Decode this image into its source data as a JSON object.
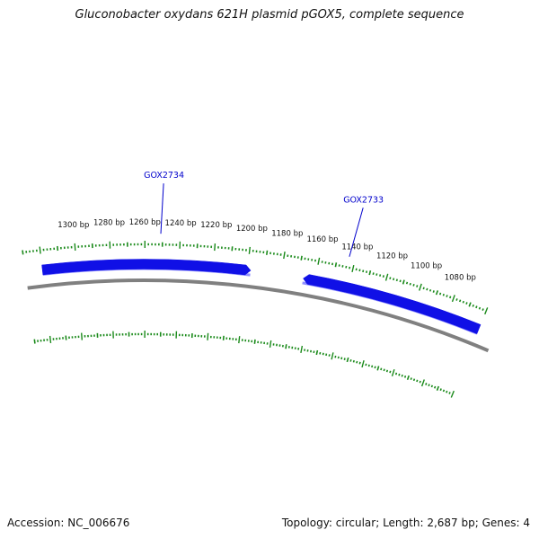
{
  "title": "Gluconobacter oxydans 621H plasmid pGOX5, complete sequence",
  "accession_label": "Accession: NC_006676",
  "summary_label": "Topology: circular; Length: 2,687 bp; Genes: 4",
  "colors": {
    "gene": "#1010e6",
    "gene_shadow": "#9090ff",
    "backbone": "#808080",
    "tick": "#1a8a1a",
    "gene_label": "#0000cc",
    "text": "#111111"
  },
  "map": {
    "topology": "circular",
    "sequence_length_bp": 2687,
    "visible_range_bp": [
      1070,
      1310
    ],
    "ruler_labels": [
      "1080 bp",
      "1100 bp",
      "1120 bp",
      "1140 bp",
      "1160 bp",
      "1180 bp",
      "1200 bp",
      "1220 bp",
      "1240 bp",
      "1260 bp",
      "1280 bp",
      "1300 bp"
    ],
    "ruler_positions_bp": [
      1080,
      1100,
      1120,
      1140,
      1160,
      1180,
      1200,
      1220,
      1240,
      1260,
      1280,
      1300
    ],
    "genes": [
      {
        "name": "GOX2733",
        "start_bp": 1060,
        "end_bp": 1167,
        "strand": "+"
      },
      {
        "name": "GOX2734",
        "start_bp": 1198,
        "end_bp": 1320,
        "strand": "-"
      }
    ]
  }
}
